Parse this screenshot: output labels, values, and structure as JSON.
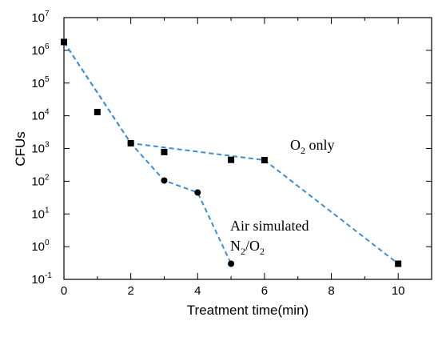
{
  "chart_data": {
    "type": "scatter",
    "title": "",
    "xlabel": "Treatment time(min)",
    "ylabel": "CFUs",
    "xlim": [
      0,
      11
    ],
    "ylim": [
      -1,
      7
    ],
    "y_scale": "log",
    "x_ticks": [
      "0",
      "2",
      "4",
      "6",
      "8",
      "10"
    ],
    "y_ticks": [
      {
        "base": "10",
        "exp": "-1"
      },
      {
        "base": "10",
        "exp": "0"
      },
      {
        "base": "10",
        "exp": "1"
      },
      {
        "base": "10",
        "exp": "2"
      },
      {
        "base": "10",
        "exp": "3"
      },
      {
        "base": "10",
        "exp": "4"
      },
      {
        "base": "10",
        "exp": "5"
      },
      {
        "base": "10",
        "exp": "6"
      },
      {
        "base": "10",
        "exp": "7"
      }
    ],
    "series": [
      {
        "marker": "square",
        "color": "#000000",
        "x": [
          0,
          1,
          2,
          3,
          5,
          6,
          10
        ],
        "y": [
          1800000,
          13000,
          1450,
          780,
          450,
          440,
          0.3
        ]
      },
      {
        "marker": "circle",
        "color": "#000000",
        "x": [
          0,
          2,
          3,
          4,
          5
        ],
        "y": [
          1800000,
          1450,
          105,
          45,
          0.3
        ]
      }
    ],
    "fit_lines": [
      {
        "color": "#3b8fd6",
        "x": [
          0,
          2,
          6,
          10
        ],
        "y": [
          1800000,
          1450,
          440,
          0.3
        ]
      },
      {
        "color": "#3b8fd6",
        "x": [
          0,
          2,
          3,
          4,
          5
        ],
        "y": [
          1800000,
          1450,
          105,
          45,
          0.3
        ]
      }
    ],
    "annotations": {
      "o2_only": {
        "main": "O",
        "sub": "2",
        "rest": " only"
      },
      "air_simulated": {
        "line1": "Air simulated",
        "n": "N",
        "sub1": "2",
        "mid": "/O",
        "sub2": "2"
      }
    }
  }
}
